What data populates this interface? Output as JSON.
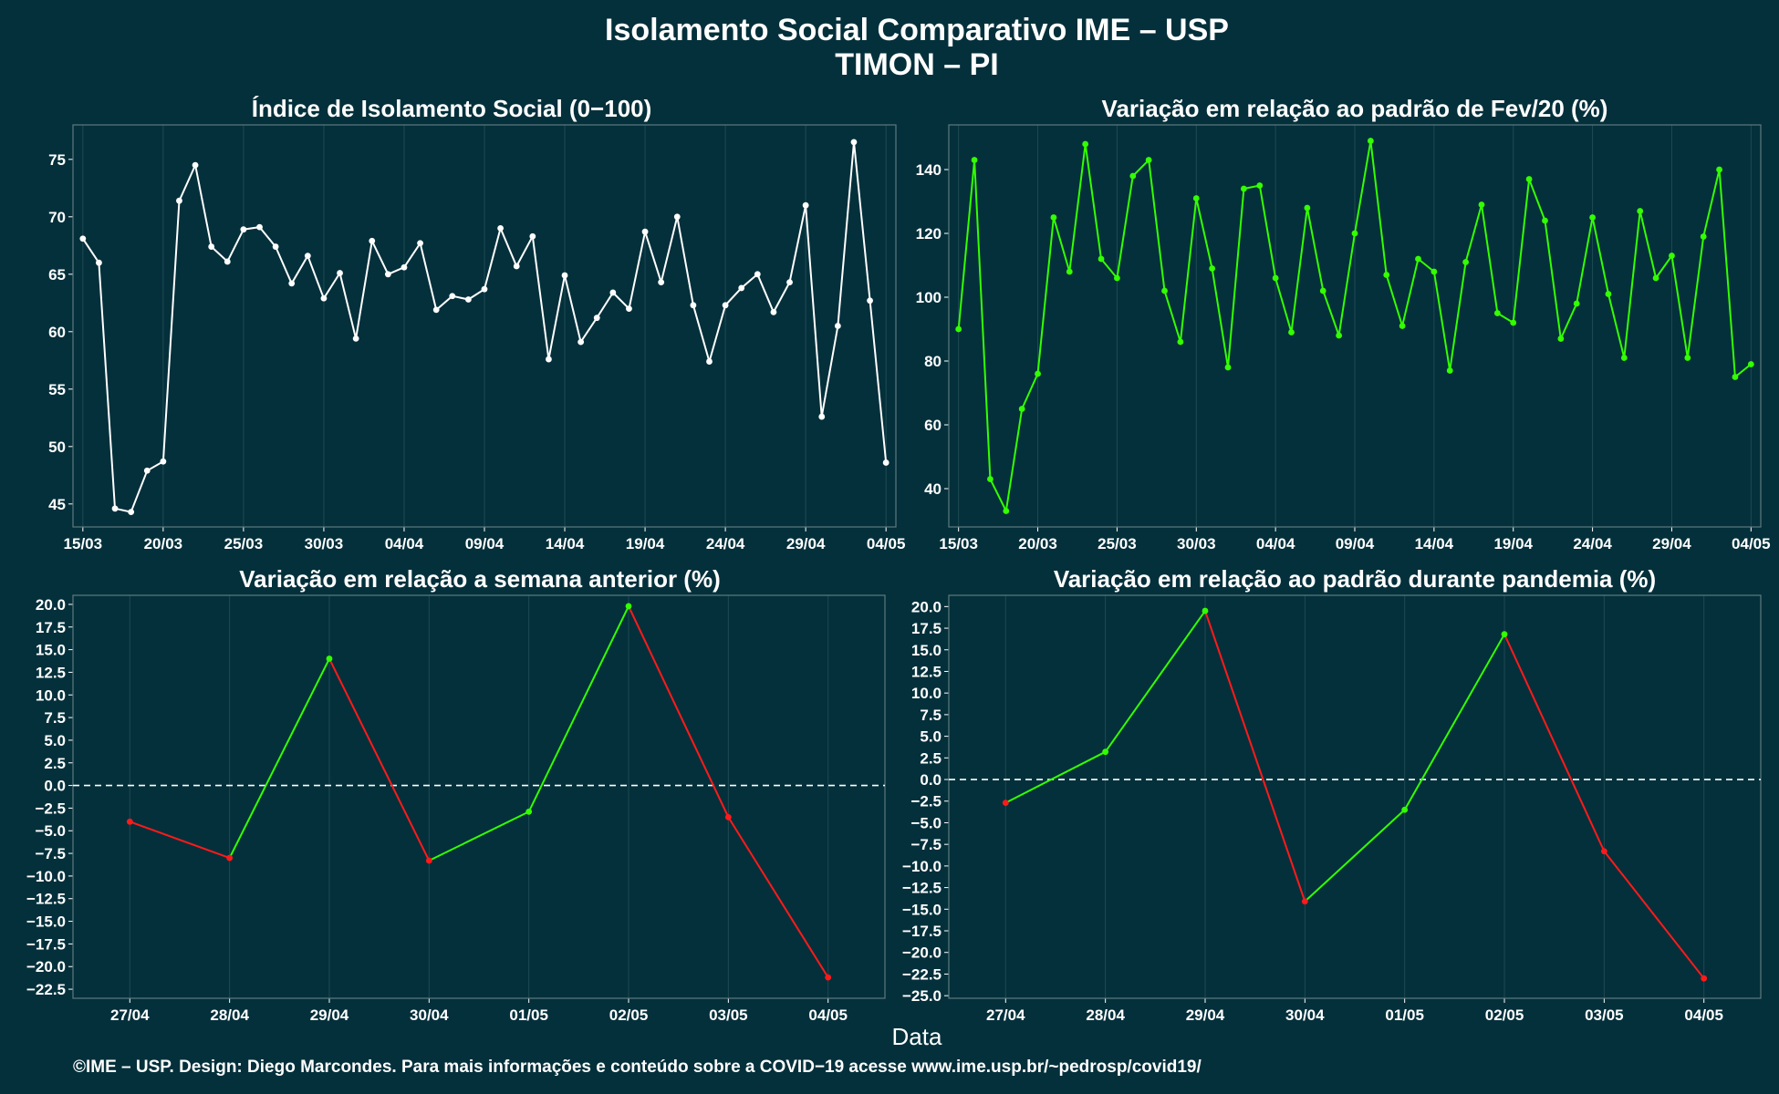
{
  "title": "Isolamento Social Comparativo IME – USP",
  "subtitle": "TIMON – PI",
  "xlabel": "Data",
  "caption": "©IME – USP. Design: Diego Marcondes. Para mais informações e conteúdo sobre a COVID−19 acesse www.ime.usp.br/~pedrosp/covid19/",
  "colors": {
    "background": "#04303b",
    "white_series": "#ffffff",
    "green": "#33ff00",
    "red": "#ff1a1a"
  },
  "chart_data": [
    {
      "id": "isolamento",
      "type": "line",
      "title": "Índice de Isolamento Social (0−100)",
      "x_start": "15/03",
      "x_ticks": [
        "15/03",
        "20/03",
        "25/03",
        "30/03",
        "04/04",
        "09/04",
        "14/04",
        "19/04",
        "24/04",
        "29/04",
        "04/05"
      ],
      "y_ticks": [
        "45",
        "50",
        "55",
        "60",
        "65",
        "70",
        "75"
      ],
      "ylim": [
        43,
        78
      ],
      "series_color": "white",
      "values": [
        68.1,
        66.0,
        44.6,
        44.3,
        47.9,
        48.7,
        71.4,
        74.5,
        67.4,
        66.1,
        68.9,
        69.1,
        67.4,
        64.2,
        66.6,
        62.9,
        65.1,
        59.4,
        67.9,
        65.0,
        65.6,
        67.7,
        61.9,
        63.1,
        62.8,
        63.7,
        69.0,
        65.7,
        68.3,
        57.6,
        64.9,
        59.1,
        61.2,
        63.4,
        62.0,
        68.7,
        64.3,
        70.0,
        62.3,
        57.4,
        62.3,
        63.8,
        65.0,
        61.7,
        64.3,
        71.0,
        52.6,
        60.5,
        76.5,
        62.7,
        48.6
      ]
    },
    {
      "id": "fev20",
      "type": "line",
      "title": "Variação em relação ao padrão de Fev/20 (%)",
      "x_start": "15/03",
      "x_ticks": [
        "15/03",
        "20/03",
        "25/03",
        "30/03",
        "04/04",
        "09/04",
        "14/04",
        "19/04",
        "24/04",
        "29/04",
        "04/05"
      ],
      "y_ticks": [
        "40",
        "60",
        "80",
        "100",
        "120",
        "140"
      ],
      "ylim": [
        28,
        154
      ],
      "series_color": "green",
      "values": [
        90,
        143,
        43,
        33,
        65,
        76,
        125,
        108,
        148,
        112,
        106,
        138,
        143,
        102,
        86,
        131,
        109,
        78,
        134,
        135,
        106,
        89,
        128,
        102,
        88,
        120,
        149,
        107,
        91,
        112,
        108,
        77,
        111,
        129,
        95,
        92,
        137,
        124,
        87,
        98,
        125,
        101,
        81,
        127,
        106,
        113,
        81,
        119,
        140,
        75,
        79
      ]
    },
    {
      "id": "semana",
      "type": "line",
      "title": "Variação em relação a semana anterior (%)",
      "categories": [
        "27/04",
        "28/04",
        "29/04",
        "30/04",
        "01/05",
        "02/05",
        "03/05",
        "04/05"
      ],
      "y_ticks": [
        "20.0",
        "17.5",
        "15.0",
        "12.5",
        "10.0",
        "7.5",
        "5.0",
        "2.5",
        "0.0",
        "−2.5",
        "−5.0",
        "−7.5",
        "−10.0",
        "−12.5",
        "−15.0",
        "−17.5",
        "−20.0",
        "−22.5"
      ],
      "ylim": [
        -23.5,
        21
      ],
      "reference_line": 0,
      "values": [
        -4.0,
        -8.0,
        14.0,
        -8.3,
        -2.9,
        19.8,
        -3.5,
        -21.2
      ]
    },
    {
      "id": "pandemia",
      "type": "line",
      "title": "Variação em relação ao padrão durante pandemia (%)",
      "categories": [
        "27/04",
        "28/04",
        "29/04",
        "30/04",
        "01/05",
        "02/05",
        "03/05",
        "04/05"
      ],
      "y_ticks": [
        "20.0",
        "17.5",
        "15.0",
        "12.5",
        "10.0",
        "7.5",
        "5.0",
        "2.5",
        "0.0",
        "−2.5",
        "−5.0",
        "−7.5",
        "−10.0",
        "−12.5",
        "−15.0",
        "−17.5",
        "−20.0",
        "−22.5",
        "−25.0"
      ],
      "ylim": [
        -25.3,
        21.3
      ],
      "reference_line": 0,
      "values": [
        -2.7,
        3.2,
        19.5,
        -14.1,
        -3.5,
        16.8,
        -8.3,
        -23.0
      ]
    }
  ]
}
